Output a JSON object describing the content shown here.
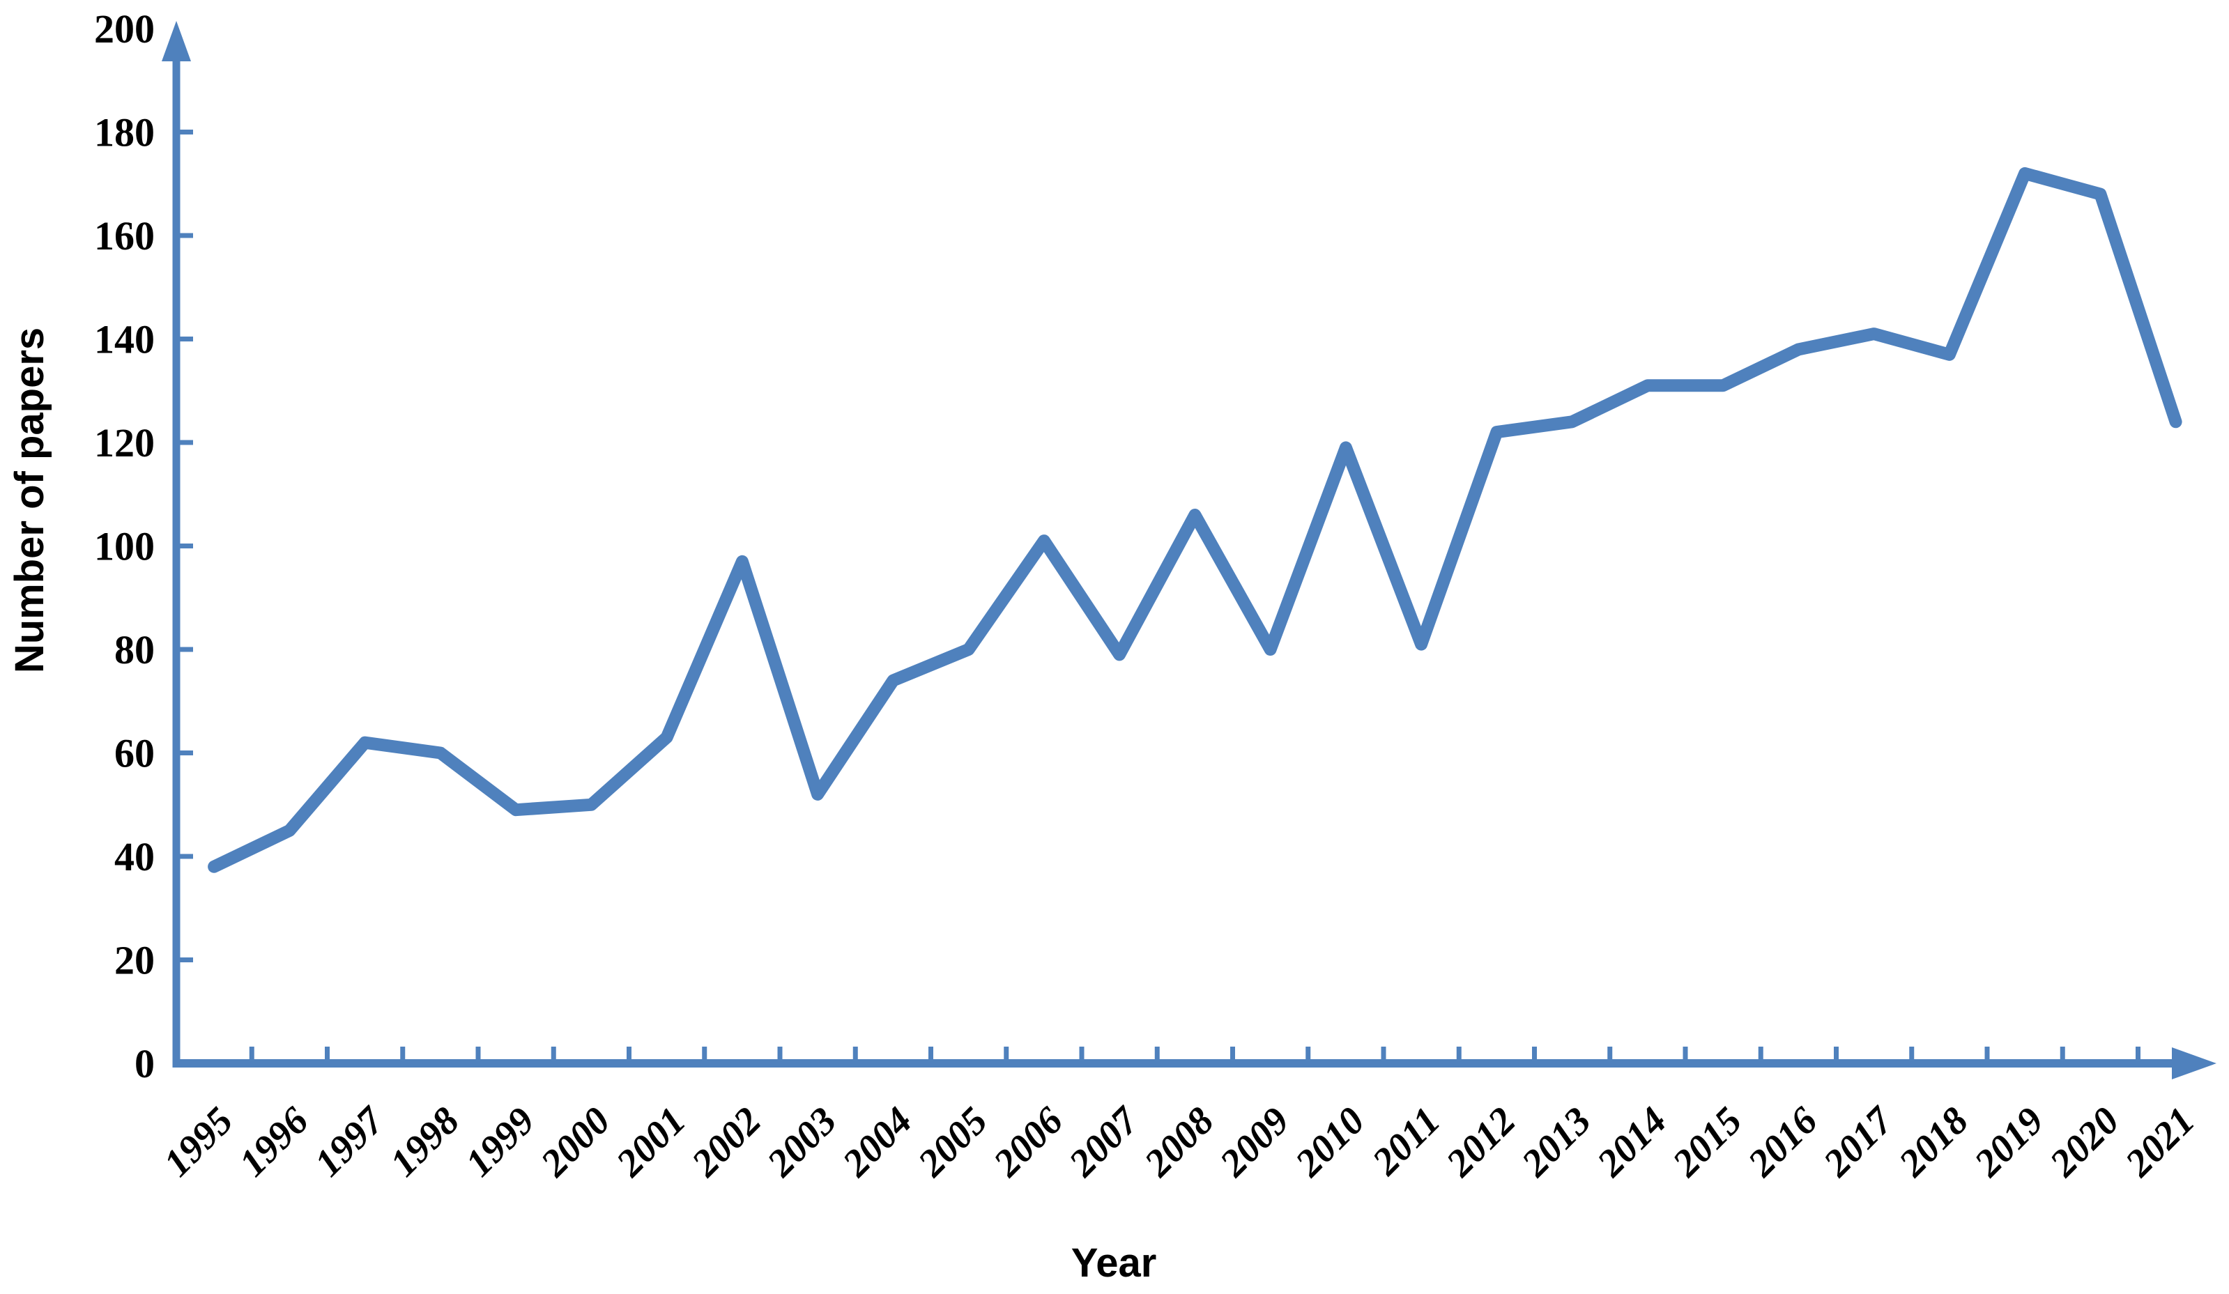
{
  "figure": {
    "background_color": "#ffffff",
    "accent_color": "#4F81BD"
  },
  "chart_data": {
    "type": "line",
    "title": "",
    "xlabel": "Year",
    "ylabel": "Number of papers",
    "categories": [
      "1995",
      "1996",
      "1997",
      "1998",
      "1999",
      "2000",
      "2001",
      "2002",
      "2003",
      "2004",
      "2005",
      "2006",
      "2007",
      "2008",
      "2009",
      "2010",
      "2011",
      "2012",
      "2013",
      "2014",
      "2015",
      "2016",
      "2017",
      "2018",
      "2019",
      "2020",
      "2021"
    ],
    "series": [
      {
        "name": "Number of papers",
        "values": [
          38,
          45,
          62,
          60,
          49,
          50,
          63,
          97,
          52,
          74,
          80,
          101,
          79,
          106,
          80,
          119,
          81,
          122,
          124,
          131,
          131,
          138,
          141,
          137,
          172,
          168,
          124
        ]
      }
    ],
    "ylim": [
      0,
      200
    ],
    "ytick_step": 20,
    "grid": false,
    "legend_position": "none",
    "line_color": "#4F81BD",
    "axis_color": "#4F81BD",
    "text_color": "#000000",
    "x_axis_arrow": "right",
    "y_axis_arrow": "up",
    "tick_direction": "inside"
  }
}
